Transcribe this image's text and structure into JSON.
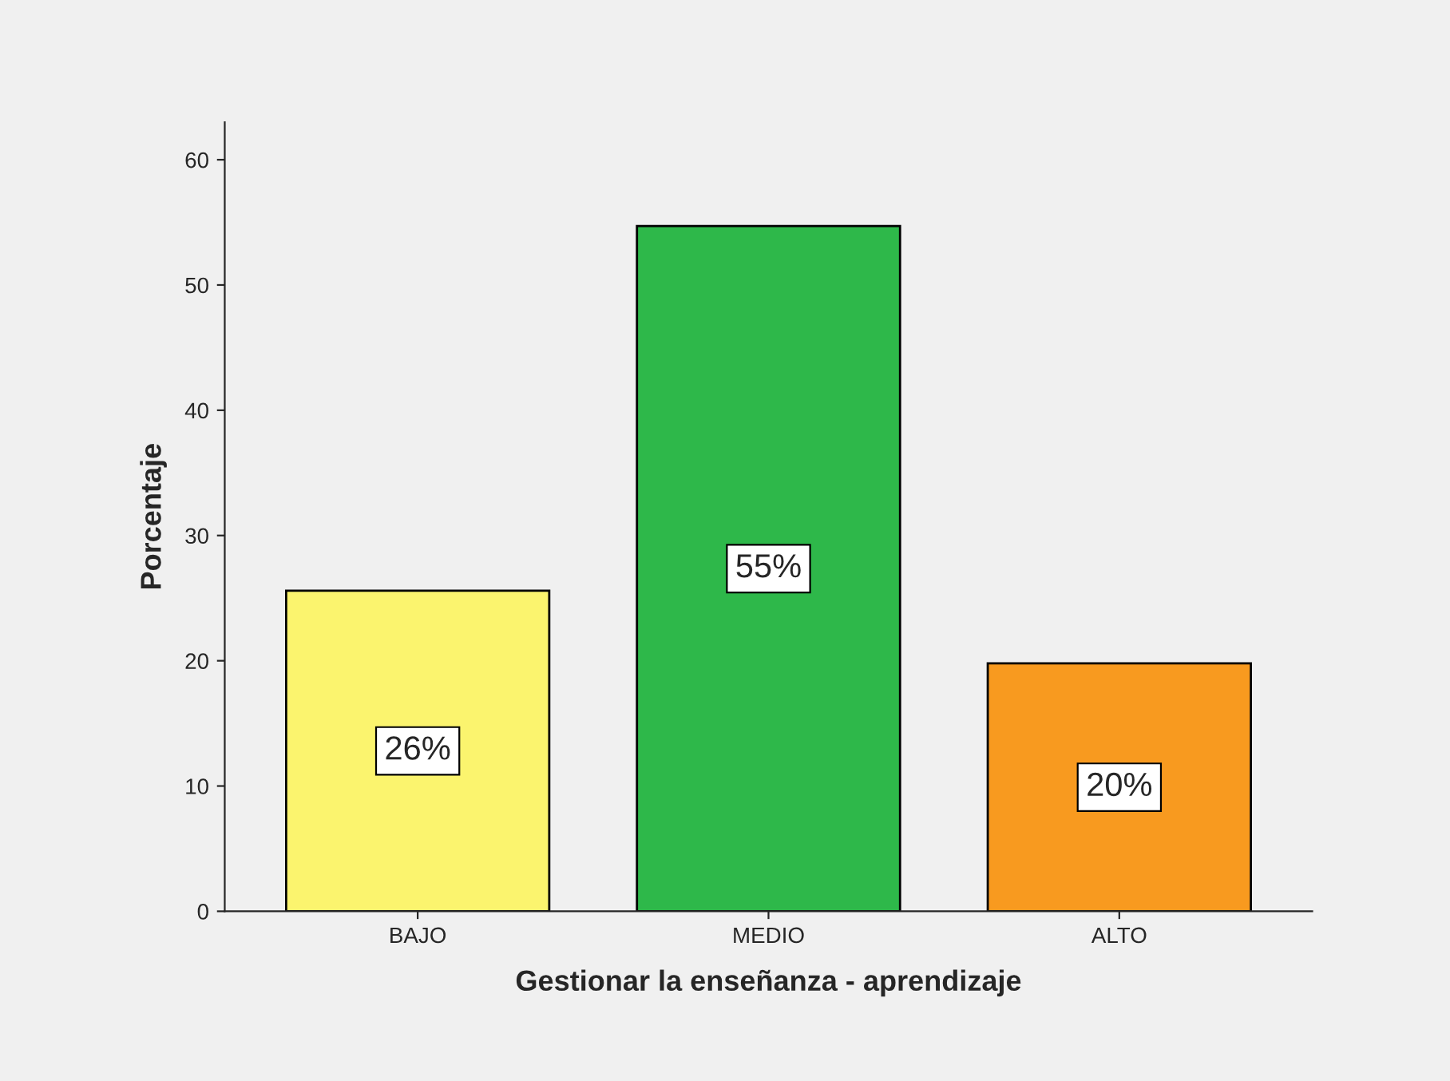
{
  "chart_data": {
    "type": "bar",
    "xlabel": "Gestionar la enseñanza - aprendizaje",
    "ylabel": "Porcentaje",
    "categories": [
      "BAJO",
      "MEDIO",
      "ALTO"
    ],
    "values": [
      25.6,
      54.7,
      19.8
    ],
    "value_labels": [
      "26%",
      "55%",
      "20%"
    ],
    "colors": [
      "#fbf46e",
      "#2eb84a",
      "#f89a1f"
    ],
    "ylim": [
      0,
      63
    ],
    "yticks": [
      0,
      10,
      20,
      30,
      40,
      50,
      60
    ],
    "grid": false
  }
}
